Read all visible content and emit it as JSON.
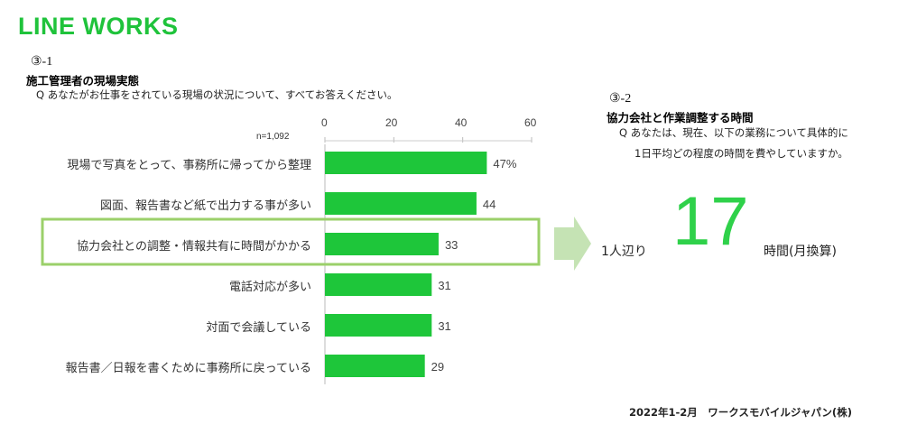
{
  "logo": "LINE WORKS",
  "left": {
    "section_number": "③-1",
    "title": "施工管理者の現場実態",
    "question": "Q あなたがお仕事をされている現場の状況について、すべてお答えください。",
    "n_label": "n=1,092"
  },
  "right": {
    "section_number": "③-2",
    "title": "協力会社と作業調整する時間",
    "question_line1": "Q あなたは、現在、以下の業務について具体的に",
    "question_line2": "1日平均どの程度の時間を費やしていますか。",
    "prefix": "1人辺り",
    "value": "17",
    "suffix": "時間(月換算)"
  },
  "footer": "2022年1-2月　ワークスモバイルジャパン(株)",
  "colors": {
    "bar": "#1ec63a",
    "highlight": "#9bd06a",
    "arrow": "#c5e3b4",
    "logo": "#1fc33b"
  },
  "chart_data": {
    "type": "bar",
    "orientation": "horizontal",
    "categories": [
      "現場で写真をとって、事務所に帰ってから整理",
      "図面、報告書など紙で出力する事が多い",
      "協力会社との調整・情報共有に時間がかかる",
      "電話対応が多い",
      "対面で会議している",
      "報告書／日報を書くために事務所に戻っている"
    ],
    "values": [
      47,
      44,
      33,
      31,
      31,
      29
    ],
    "data_labels": [
      "47%",
      "44",
      "33",
      "31",
      "31",
      "29"
    ],
    "xlim": [
      0,
      60
    ],
    "ticks": [
      "0",
      "20",
      "40",
      "60"
    ],
    "tick_values": [
      0,
      20,
      40,
      60
    ],
    "highlighted_category": "協力会社との調整・情報共有に時間がかかる"
  }
}
